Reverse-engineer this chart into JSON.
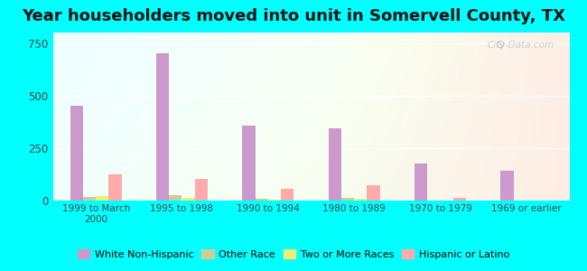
{
  "title": "Year householders moved into unit in Somervell County, TX",
  "categories": [
    "1999 to March\n2000",
    "1995 to 1998",
    "1990 to 1994",
    "1980 to 1989",
    "1970 to 1979",
    "1969 or earlier"
  ],
  "series": {
    "White Non-Hispanic": [
      450,
      700,
      355,
      345,
      175,
      140
    ],
    "Other Race": [
      18,
      25,
      8,
      15,
      0,
      0
    ],
    "Two or More Races": [
      22,
      12,
      5,
      8,
      0,
      0
    ],
    "Hispanic or Latino": [
      125,
      105,
      55,
      75,
      15,
      0
    ]
  },
  "colors": {
    "White Non-Hispanic": "#cc99cc",
    "Other Race": "#cccc99",
    "Two or More Races": "#eeee77",
    "Hispanic or Latino": "#ffaaaa"
  },
  "ylim": [
    0,
    800
  ],
  "yticks": [
    0,
    250,
    500,
    750
  ],
  "bg_outer": "#00ffff",
  "watermark": "City-Data.com",
  "bar_width": 0.15,
  "legend_fontsize": 8,
  "title_fontsize": 13
}
